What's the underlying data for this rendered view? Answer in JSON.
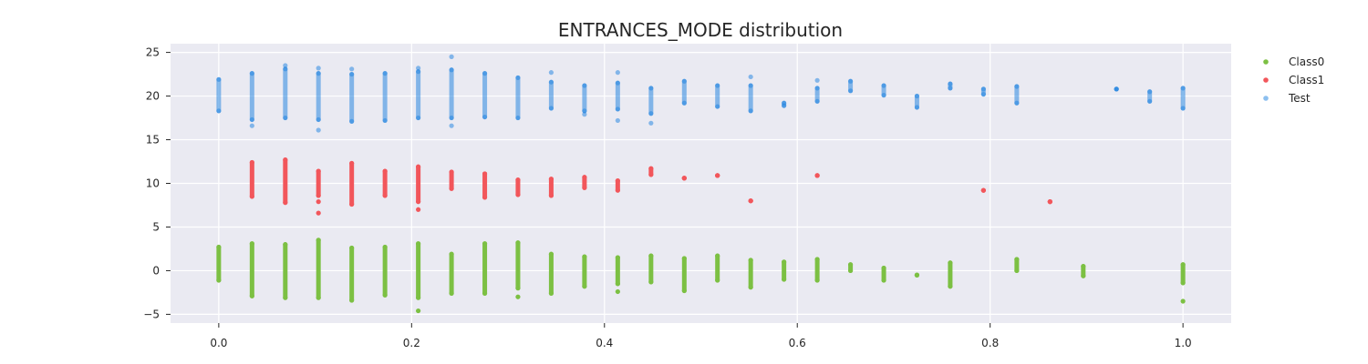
{
  "chart_data": {
    "type": "scatter",
    "title": "ENTRANCES_MODE distribution",
    "xlabel": "",
    "ylabel": "",
    "xlim": [
      -0.05,
      1.05
    ],
    "ylim": [
      -6,
      26
    ],
    "xticks": [
      0.0,
      0.2,
      0.4,
      0.6,
      0.8,
      1.0
    ],
    "xtick_labels": [
      "0.0",
      "0.2",
      "0.4",
      "0.6",
      "0.8",
      "1.0"
    ],
    "yticks": [
      -5,
      0,
      5,
      10,
      15,
      20,
      25
    ],
    "ytick_labels": [
      "−5",
      "0",
      "5",
      "10",
      "15",
      "20",
      "25"
    ],
    "grid": true,
    "background": "#eaeaf2",
    "legend": {
      "placement": "right",
      "entries": [
        "Class0",
        "Class1",
        "Test"
      ]
    },
    "series": [
      {
        "name": "Class0",
        "color": "#7cc043",
        "alpha": 1.0,
        "columns": [
          {
            "x": 0.0,
            "ymin": -1.1,
            "ymax": 2.7,
            "extra": []
          },
          {
            "x": 0.0345,
            "ymin": -2.9,
            "ymax": 3.1,
            "extra": []
          },
          {
            "x": 0.069,
            "ymin": -3.1,
            "ymax": 3.0,
            "extra": []
          },
          {
            "x": 0.1034,
            "ymin": -3.1,
            "ymax": 3.5,
            "extra": []
          },
          {
            "x": 0.1379,
            "ymin": -3.4,
            "ymax": 2.6,
            "extra": []
          },
          {
            "x": 0.1724,
            "ymin": -2.8,
            "ymax": 2.7,
            "extra": []
          },
          {
            "x": 0.2069,
            "ymin": -3.1,
            "ymax": 3.1,
            "extra": [
              -4.6
            ]
          },
          {
            "x": 0.2414,
            "ymin": -2.6,
            "ymax": 1.9,
            "extra": []
          },
          {
            "x": 0.2759,
            "ymin": -2.6,
            "ymax": 3.1,
            "extra": []
          },
          {
            "x": 0.3103,
            "ymin": -2.0,
            "ymax": 3.2,
            "extra": [
              -3.0
            ]
          },
          {
            "x": 0.3448,
            "ymin": -2.6,
            "ymax": 1.9,
            "extra": []
          },
          {
            "x": 0.3793,
            "ymin": -1.8,
            "ymax": 1.6,
            "extra": []
          },
          {
            "x": 0.4138,
            "ymin": -1.5,
            "ymax": 1.5,
            "extra": [
              -2.4
            ]
          },
          {
            "x": 0.4483,
            "ymin": -1.3,
            "ymax": 1.7,
            "extra": []
          },
          {
            "x": 0.4828,
            "ymin": -2.3,
            "ymax": 1.4,
            "extra": []
          },
          {
            "x": 0.5172,
            "ymin": -1.1,
            "ymax": 1.7,
            "extra": []
          },
          {
            "x": 0.5517,
            "ymin": -1.9,
            "ymax": 1.2,
            "extra": []
          },
          {
            "x": 0.5862,
            "ymin": -1.0,
            "ymax": 1.0,
            "extra": []
          },
          {
            "x": 0.6207,
            "ymin": -1.1,
            "ymax": 1.3,
            "extra": []
          },
          {
            "x": 0.6552,
            "ymin": 0.0,
            "ymax": 0.7,
            "extra": []
          },
          {
            "x": 0.6897,
            "ymin": -1.1,
            "ymax": 0.3,
            "extra": []
          },
          {
            "x": 0.7241,
            "ymin": -0.5,
            "ymax": -0.5,
            "extra": []
          },
          {
            "x": 0.7586,
            "ymin": -1.8,
            "ymax": 0.9,
            "extra": []
          },
          {
            "x": 0.8276,
            "ymin": 0.0,
            "ymax": 1.3,
            "extra": []
          },
          {
            "x": 0.8966,
            "ymin": -0.6,
            "ymax": 0.5,
            "extra": []
          },
          {
            "x": 1.0,
            "ymin": -1.4,
            "ymax": 0.7,
            "extra": [
              -3.5
            ]
          }
        ]
      },
      {
        "name": "Class1",
        "color": "#f2565b",
        "alpha": 1.0,
        "columns": [
          {
            "x": 0.0345,
            "ymin": 8.5,
            "ymax": 12.4,
            "extra": []
          },
          {
            "x": 0.069,
            "ymin": 7.8,
            "ymax": 12.7,
            "extra": []
          },
          {
            "x": 0.1034,
            "ymin": 8.6,
            "ymax": 11.4,
            "extra": [
              6.6,
              7.9
            ]
          },
          {
            "x": 0.1379,
            "ymin": 7.6,
            "ymax": 12.3,
            "extra": []
          },
          {
            "x": 0.1724,
            "ymin": 8.6,
            "ymax": 11.4,
            "extra": []
          },
          {
            "x": 0.2069,
            "ymin": 7.9,
            "ymax": 11.9,
            "extra": [
              7.0
            ]
          },
          {
            "x": 0.2414,
            "ymin": 9.4,
            "ymax": 11.3,
            "extra": []
          },
          {
            "x": 0.2759,
            "ymin": 8.4,
            "ymax": 11.1,
            "extra": []
          },
          {
            "x": 0.3103,
            "ymin": 8.7,
            "ymax": 10.4,
            "extra": []
          },
          {
            "x": 0.3448,
            "ymin": 8.6,
            "ymax": 10.5,
            "extra": []
          },
          {
            "x": 0.3793,
            "ymin": 9.5,
            "ymax": 10.7,
            "extra": []
          },
          {
            "x": 0.4138,
            "ymin": 9.2,
            "ymax": 10.3,
            "extra": []
          },
          {
            "x": 0.4483,
            "ymin": 11.0,
            "ymax": 11.7,
            "extra": []
          },
          {
            "x": 0.4828,
            "ymin": 10.6,
            "ymax": 10.6,
            "extra": []
          },
          {
            "x": 0.5172,
            "ymin": 10.9,
            "ymax": 10.9,
            "extra": []
          },
          {
            "x": 0.5517,
            "ymin": 8.0,
            "ymax": 8.0,
            "extra": []
          },
          {
            "x": 0.6207,
            "ymin": 10.9,
            "ymax": 10.9,
            "extra": []
          },
          {
            "x": 0.7931,
            "ymin": 9.2,
            "ymax": 9.2,
            "extra": []
          },
          {
            "x": 0.8621,
            "ymin": 7.9,
            "ymax": 7.9,
            "extra": []
          }
        ]
      },
      {
        "name": "Test",
        "color": "#1a7fe0",
        "alpha": 0.5,
        "columns": [
          {
            "x": 0.0,
            "ymin": 18.3,
            "ymax": 21.9,
            "extra": []
          },
          {
            "x": 0.0345,
            "ymin": 17.3,
            "ymax": 22.6,
            "extra": [
              16.6
            ]
          },
          {
            "x": 0.069,
            "ymin": 17.5,
            "ymax": 23.1,
            "extra": [
              23.5
            ]
          },
          {
            "x": 0.1034,
            "ymin": 17.3,
            "ymax": 22.6,
            "extra": [
              16.1,
              23.2
            ]
          },
          {
            "x": 0.1379,
            "ymin": 17.1,
            "ymax": 22.5,
            "extra": [
              23.1
            ]
          },
          {
            "x": 0.1724,
            "ymin": 17.2,
            "ymax": 22.6,
            "extra": []
          },
          {
            "x": 0.2069,
            "ymin": 17.5,
            "ymax": 22.8,
            "extra": [
              23.2
            ]
          },
          {
            "x": 0.2414,
            "ymin": 17.5,
            "ymax": 23.0,
            "extra": [
              24.5,
              16.6
            ]
          },
          {
            "x": 0.2759,
            "ymin": 17.6,
            "ymax": 22.6,
            "extra": []
          },
          {
            "x": 0.3103,
            "ymin": 17.5,
            "ymax": 22.1,
            "extra": []
          },
          {
            "x": 0.3448,
            "ymin": 18.6,
            "ymax": 21.6,
            "extra": [
              22.7
            ]
          },
          {
            "x": 0.3793,
            "ymin": 18.3,
            "ymax": 21.2,
            "extra": [
              17.9
            ]
          },
          {
            "x": 0.4138,
            "ymin": 18.5,
            "ymax": 21.5,
            "extra": [
              22.7,
              17.2
            ]
          },
          {
            "x": 0.4483,
            "ymin": 18.0,
            "ymax": 20.9,
            "extra": [
              16.9
            ]
          },
          {
            "x": 0.4828,
            "ymin": 19.2,
            "ymax": 21.7,
            "extra": []
          },
          {
            "x": 0.5172,
            "ymin": 18.8,
            "ymax": 21.2,
            "extra": []
          },
          {
            "x": 0.5517,
            "ymin": 18.3,
            "ymax": 21.2,
            "extra": [
              22.2
            ]
          },
          {
            "x": 0.5862,
            "ymin": 18.9,
            "ymax": 19.2,
            "extra": []
          },
          {
            "x": 0.6207,
            "ymin": 19.4,
            "ymax": 20.9,
            "extra": [
              21.8
            ]
          },
          {
            "x": 0.6552,
            "ymin": 20.6,
            "ymax": 21.7,
            "extra": []
          },
          {
            "x": 0.6897,
            "ymin": 20.1,
            "ymax": 21.2,
            "extra": []
          },
          {
            "x": 0.7241,
            "ymin": 18.7,
            "ymax": 20.0,
            "extra": []
          },
          {
            "x": 0.7586,
            "ymin": 20.9,
            "ymax": 21.4,
            "extra": []
          },
          {
            "x": 0.7931,
            "ymin": 20.2,
            "ymax": 20.8,
            "extra": []
          },
          {
            "x": 0.8276,
            "ymin": 19.2,
            "ymax": 21.1,
            "extra": []
          },
          {
            "x": 0.931,
            "ymin": 20.8,
            "ymax": 20.8,
            "extra": []
          },
          {
            "x": 0.9655,
            "ymin": 19.4,
            "ymax": 20.5,
            "extra": []
          },
          {
            "x": 1.0,
            "ymin": 18.6,
            "ymax": 20.9,
            "extra": []
          }
        ]
      }
    ]
  }
}
